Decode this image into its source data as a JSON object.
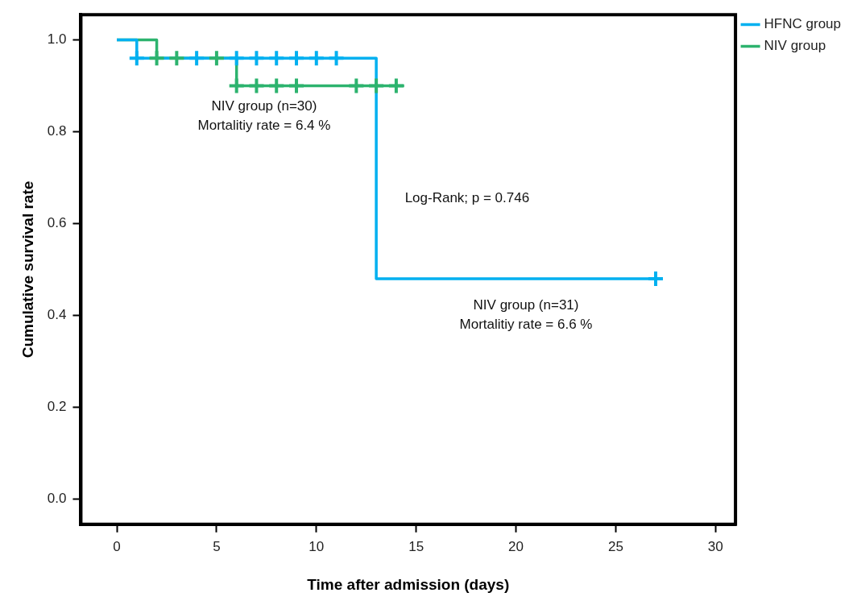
{
  "chart_data": {
    "type": "step",
    "xlabel": "Time after admission (days)",
    "ylabel": "Cumulative survival rate",
    "series": [
      {
        "name": "HFNC group",
        "color": "#00b0f0",
        "x": [
          0,
          1,
          13,
          27
        ],
        "values": [
          1,
          0.96,
          0.48,
          0.48
        ]
      },
      {
        "name": "NIV group",
        "color": "#2db36e",
        "x": [
          0,
          2,
          6,
          14.4
        ],
        "values": [
          1,
          0.96,
          0.9,
          0.9
        ]
      },
      {
        "type": "scatter",
        "color": "#00b0f0",
        "marker": "cross",
        "x": [
          1,
          4,
          6,
          7,
          8,
          9,
          10,
          11,
          27
        ],
        "values": [
          0.96,
          0.96,
          0.96,
          0.96,
          0.96,
          0.96,
          0.96,
          0.96,
          0.48
        ]
      },
      {
        "type": "scatter",
        "color": "#2db36e",
        "marker": "cross",
        "x": [
          2,
          3,
          5,
          6,
          7,
          8,
          9,
          12,
          13,
          14
        ],
        "values": [
          0.96,
          0.96,
          0.96,
          0.9,
          0.9,
          0.9,
          0.9,
          0.9,
          0.9,
          0.9
        ]
      }
    ],
    "xlim": [
      -1.8,
      31
    ],
    "xticks": [
      0,
      5,
      10,
      15,
      20,
      25,
      30
    ],
    "ylim": [
      -0.055,
      1.055
    ],
    "yticks": [
      {
        "value": 0,
        "label": "0.0"
      },
      {
        "value": 0.2,
        "label": "0.2"
      },
      {
        "value": 0.4,
        "label": "0.4"
      },
      {
        "value": 0.6,
        "label": "0.6"
      },
      {
        "value": 0.8,
        "label": "0.8"
      },
      {
        "value": 1,
        "label": "1.0"
      }
    ],
    "grid": false,
    "legend": "top right",
    "annotations": [
      "NIV group (n=30)\nMortalitiy rate = 6.4 %",
      "Log-Rank; p = 0.746",
      "NIV group (n=31)\nMortalitiy rate = 6.6 %"
    ]
  }
}
